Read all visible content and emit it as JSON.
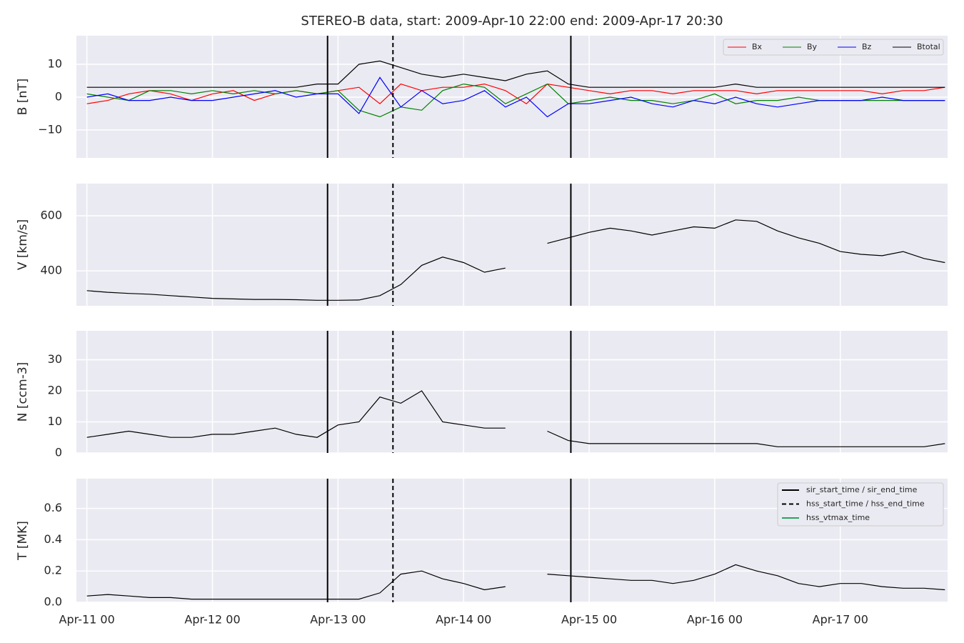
{
  "chart_data": [
    {
      "type": "line",
      "title": "STEREO-B data, start: 2009-Apr-10 22:00  end: 2009-Apr-17 20:30",
      "ylabel": "B [nT]",
      "x": [
        "Apr-11 00",
        "Apr-11 04",
        "Apr-11 08",
        "Apr-11 12",
        "Apr-11 16",
        "Apr-11 20",
        "Apr-12 00",
        "Apr-12 04",
        "Apr-12 08",
        "Apr-12 12",
        "Apr-12 16",
        "Apr-12 20",
        "Apr-13 00",
        "Apr-13 04",
        "Apr-13 08",
        "Apr-13 12",
        "Apr-13 16",
        "Apr-13 20",
        "Apr-14 00",
        "Apr-14 04",
        "Apr-14 08",
        "Apr-14 12",
        "Apr-14 16",
        "Apr-14 20",
        "Apr-15 00",
        "Apr-15 04",
        "Apr-15 08",
        "Apr-15 12",
        "Apr-15 16",
        "Apr-15 20",
        "Apr-16 00",
        "Apr-16 04",
        "Apr-16 08",
        "Apr-16 12",
        "Apr-16 16",
        "Apr-16 20",
        "Apr-17 00",
        "Apr-17 04",
        "Apr-17 08",
        "Apr-17 12",
        "Apr-17 16",
        "Apr-17 20"
      ],
      "series": [
        {
          "name": "Bx",
          "color": "#ff0000",
          "values": [
            -2,
            -1,
            1,
            2,
            1,
            -1,
            1,
            2,
            -1,
            1,
            2,
            1,
            2,
            3,
            -2,
            4,
            2,
            3,
            3,
            4,
            2,
            -2,
            4,
            3,
            2,
            1,
            2,
            2,
            1,
            2,
            2,
            2,
            1,
            2,
            2,
            2,
            2,
            2,
            1,
            2,
            2,
            3
          ]
        },
        {
          "name": "By",
          "color": "#008000",
          "values": [
            1,
            0,
            -1,
            2,
            2,
            1,
            2,
            1,
            2,
            1,
            2,
            1,
            2,
            -4,
            -6,
            -3,
            -4,
            2,
            4,
            3,
            -2,
            1,
            4,
            -2,
            -1,
            0,
            -1,
            -1,
            -2,
            -1,
            1,
            -2,
            -1,
            -1,
            0,
            -1,
            -1,
            -1,
            -1,
            -1,
            -1,
            -1
          ]
        },
        {
          "name": "Bz",
          "color": "#0000ff",
          "values": [
            0,
            1,
            -1,
            -1,
            0,
            -1,
            -1,
            0,
            1,
            2,
            0,
            1,
            1,
            -5,
            6,
            -3,
            2,
            -2,
            -1,
            2,
            -3,
            0,
            -6,
            -2,
            -2,
            -1,
            0,
            -2,
            -3,
            -1,
            -2,
            0,
            -2,
            -3,
            -2,
            -1,
            -1,
            -1,
            0,
            -1,
            -1,
            -1
          ]
        },
        {
          "name": "Btotal",
          "color": "#000000",
          "values": [
            3,
            3,
            3,
            3,
            3,
            3,
            3,
            3,
            3,
            3,
            3,
            4,
            4,
            10,
            11,
            9,
            7,
            6,
            7,
            6,
            5,
            7,
            8,
            4,
            3,
            3,
            3,
            3,
            3,
            3,
            3,
            4,
            3,
            3,
            3,
            3,
            3,
            3,
            3,
            3,
            3,
            3
          ]
        }
      ],
      "ylim": [
        -18.5,
        18.7
      ],
      "yticks": [
        {
          "value": -10,
          "label": "−10"
        },
        0,
        10
      ],
      "legend": "upper right",
      "grid": true
    },
    {
      "type": "line",
      "ylabel": "V [km/s]",
      "x": [
        "Apr-11 00",
        "Apr-11 04",
        "Apr-11 08",
        "Apr-11 12",
        "Apr-11 16",
        "Apr-11 20",
        "Apr-12 00",
        "Apr-12 04",
        "Apr-12 08",
        "Apr-12 12",
        "Apr-12 16",
        "Apr-12 20",
        "Apr-13 00",
        "Apr-13 04",
        "Apr-13 08",
        "Apr-13 12",
        "Apr-13 16",
        "Apr-13 20",
        "Apr-14 00",
        "Apr-14 04",
        "Apr-14 08",
        "Apr-14 12",
        "Apr-14 16",
        "Apr-14 20",
        "Apr-15 00",
        "Apr-15 04",
        "Apr-15 08",
        "Apr-15 12",
        "Apr-15 16",
        "Apr-15 20",
        "Apr-16 00",
        "Apr-16 04",
        "Apr-16 08",
        "Apr-16 12",
        "Apr-16 16",
        "Apr-16 20",
        "Apr-17 00",
        "Apr-17 04",
        "Apr-17 08",
        "Apr-17 12",
        "Apr-17 16",
        "Apr-17 20"
      ],
      "series": [
        {
          "name": "V",
          "color": "#000000",
          "values": [
            328,
            322,
            318,
            315,
            310,
            305,
            300,
            298,
            296,
            296,
            295,
            293,
            293,
            294,
            310,
            350,
            420,
            450,
            430,
            395,
            410,
            null,
            500,
            520,
            540,
            555,
            545,
            530,
            545,
            560,
            555,
            585,
            580,
            545,
            520,
            500,
            470,
            460,
            455,
            470,
            445,
            430
          ]
        }
      ],
      "ylim": [
        273,
        717
      ],
      "yticks": [
        400,
        600
      ],
      "grid": true
    },
    {
      "type": "line",
      "ylabel": "N [ccm-3]",
      "x": [
        "Apr-11 00",
        "Apr-11 04",
        "Apr-11 08",
        "Apr-11 12",
        "Apr-11 16",
        "Apr-11 20",
        "Apr-12 00",
        "Apr-12 04",
        "Apr-12 08",
        "Apr-12 12",
        "Apr-12 16",
        "Apr-12 20",
        "Apr-13 00",
        "Apr-13 04",
        "Apr-13 08",
        "Apr-13 12",
        "Apr-13 16",
        "Apr-13 20",
        "Apr-14 00",
        "Apr-14 04",
        "Apr-14 08",
        "Apr-14 12",
        "Apr-14 16",
        "Apr-14 20",
        "Apr-15 00",
        "Apr-15 04",
        "Apr-15 08",
        "Apr-15 12",
        "Apr-15 16",
        "Apr-15 20",
        "Apr-16 00",
        "Apr-16 04",
        "Apr-16 08",
        "Apr-16 12",
        "Apr-16 16",
        "Apr-16 20",
        "Apr-17 00",
        "Apr-17 04",
        "Apr-17 08",
        "Apr-17 12",
        "Apr-17 16",
        "Apr-17 20"
      ],
      "series": [
        {
          "name": "N",
          "color": "#000000",
          "values": [
            5,
            6,
            7,
            6,
            5,
            5,
            6,
            6,
            7,
            8,
            6,
            5,
            9,
            10,
            18,
            16,
            20,
            10,
            9,
            8,
            8,
            null,
            7,
            4,
            3,
            3,
            3,
            3,
            3,
            3,
            3,
            3,
            3,
            2,
            2,
            2,
            2,
            2,
            2,
            2,
            2,
            3
          ]
        }
      ],
      "ylim": [
        0,
        39.3
      ],
      "yticks": [
        0,
        10,
        20,
        30
      ],
      "grid": true
    },
    {
      "type": "line",
      "ylabel": "T [MK]",
      "x": [
        "Apr-11 00",
        "Apr-11 04",
        "Apr-11 08",
        "Apr-11 12",
        "Apr-11 16",
        "Apr-11 20",
        "Apr-12 00",
        "Apr-12 04",
        "Apr-12 08",
        "Apr-12 12",
        "Apr-12 16",
        "Apr-12 20",
        "Apr-13 00",
        "Apr-13 04",
        "Apr-13 08",
        "Apr-13 12",
        "Apr-13 16",
        "Apr-13 20",
        "Apr-14 00",
        "Apr-14 04",
        "Apr-14 08",
        "Apr-14 12",
        "Apr-14 16",
        "Apr-14 20",
        "Apr-15 00",
        "Apr-15 04",
        "Apr-15 08",
        "Apr-15 12",
        "Apr-15 16",
        "Apr-15 20",
        "Apr-16 00",
        "Apr-16 04",
        "Apr-16 08",
        "Apr-16 12",
        "Apr-16 16",
        "Apr-16 20",
        "Apr-17 00",
        "Apr-17 04",
        "Apr-17 08",
        "Apr-17 12",
        "Apr-17 16",
        "Apr-17 20"
      ],
      "series": [
        {
          "name": "T",
          "color": "#000000",
          "values": [
            0.04,
            0.05,
            0.04,
            0.03,
            0.03,
            0.02,
            0.02,
            0.02,
            0.02,
            0.02,
            0.02,
            0.02,
            0.02,
            0.02,
            0.06,
            0.18,
            0.2,
            0.15,
            0.12,
            0.08,
            0.1,
            null,
            0.18,
            0.17,
            0.16,
            0.15,
            0.14,
            0.14,
            0.12,
            0.14,
            0.18,
            0.24,
            0.2,
            0.17,
            0.12,
            0.1,
            0.12,
            0.12,
            0.1,
            0.09,
            0.09,
            0.08
          ]
        }
      ],
      "ylim": [
        0,
        0.79
      ],
      "yticks": [
        {
          "value": 0,
          "label": "0.0"
        },
        0.2,
        0.4,
        0.6
      ],
      "grid": true,
      "xlim": [
        "Apr-10 22:00",
        "Apr-17 20:30"
      ],
      "xticks": [
        "Apr-11 00",
        "Apr-12 00",
        "Apr-13 00",
        "Apr-14 00",
        "Apr-15 00",
        "Apr-16 00",
        "Apr-17 00"
      ],
      "vlines": [
        {
          "name": "sir_start_time / sir_end_time",
          "color": "#000000",
          "linestyle": "solid",
          "x": [
            "Apr-12 22:00",
            "Apr-14 20:30"
          ]
        },
        {
          "name": "hss_start_time / hss_end_time",
          "color": "#000000",
          "linestyle": "dashed",
          "x": [
            "Apr-13 10:30"
          ]
        },
        {
          "name": "hss_vtmax_time",
          "color": "#2ca25f",
          "linestyle": "solid",
          "x": []
        }
      ],
      "legend": "upper right"
    }
  ]
}
